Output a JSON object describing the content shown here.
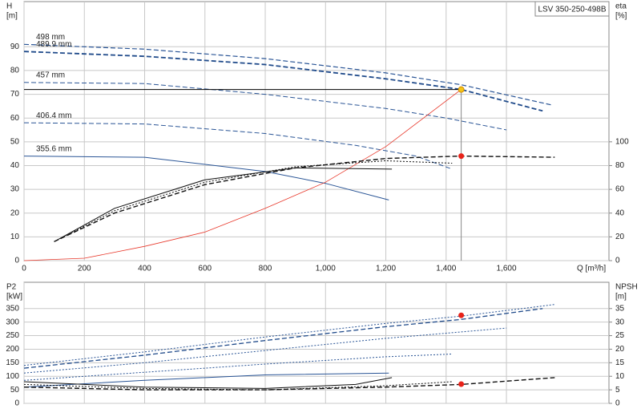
{
  "chart_data": [
    {
      "type": "line",
      "box_label": "LSV 350-250-498B",
      "y_label": "H",
      "y_unit": "[m]",
      "y2_label": "eta",
      "y2_unit": "[%]",
      "x_label": "Q [m³/h]",
      "xlim": [
        0,
        1940
      ],
      "xticks": [
        0,
        200,
        400,
        600,
        800,
        {
          "value": 1000,
          "label": "1,000"
        },
        {
          "value": 1200,
          "label": "1,200"
        },
        {
          "value": 1400,
          "label": "1,400"
        },
        {
          "value": 1600,
          "label": "1,600"
        }
      ],
      "x_tick_labels": true,
      "ylim": [
        0,
        109
      ],
      "yticks": [
        0,
        10,
        20,
        30,
        40,
        50,
        60,
        70,
        80,
        90
      ],
      "y2lim": [
        0,
        218
      ],
      "y2ticks": [
        0,
        20,
        40,
        60,
        80,
        100
      ],
      "series": [
        {
          "name": "498 mm",
          "color": "#2a5596",
          "style": "dashed",
          "width": 1.2,
          "x": [
            0,
            400,
            800,
            1200,
            1450,
            1750
          ],
          "values": [
            91,
            89,
            85,
            79,
            74,
            65.5
          ]
        },
        {
          "name": "489.9 mm",
          "color": "#1f4a8a",
          "style": "dashed",
          "width": 1.8,
          "x": [
            0,
            400,
            800,
            1200,
            1450,
            1720
          ],
          "values": [
            88,
            86,
            82.5,
            76.5,
            72,
            63
          ]
        },
        {
          "name": "457 mm",
          "color": "#2a5596",
          "style": "dashed",
          "width": 1,
          "x": [
            0,
            400,
            800,
            1200,
            1400,
            1600
          ],
          "values": [
            75,
            74.5,
            70,
            64,
            60,
            55
          ]
        },
        {
          "name": "406.4 mm",
          "color": "#2a5596",
          "style": "dashed",
          "width": 1,
          "x": [
            0,
            400,
            800,
            1100,
            1300,
            1420
          ],
          "values": [
            58,
            57.5,
            53.5,
            48.5,
            44,
            38.5
          ]
        },
        {
          "name": "355.6 mm",
          "color": "#2a5596",
          "style": "solid",
          "width": 1,
          "x": [
            0,
            400,
            800,
            1000,
            1210
          ],
          "values": [
            44,
            43.5,
            37.5,
            32.5,
            25.5
          ]
        },
        {
          "color": "#e8372a",
          "style": "solid",
          "width": 0.8,
          "x": [
            0,
            200,
            400,
            600,
            800,
            1000,
            1200,
            1450
          ],
          "values": [
            0,
            1,
            6,
            12,
            22,
            33,
            48,
            72
          ]
        },
        {
          "axis": "y2",
          "color": "#111111",
          "style": "dashed",
          "width": 1.4,
          "x": [
            100,
            300,
            600,
            900,
            1200,
            1450,
            1760
          ],
          "values": [
            16,
            40,
            64,
            78,
            86,
            88,
            87
          ]
        },
        {
          "axis": "y2",
          "color": "#111111",
          "style": "dotted",
          "width": 1,
          "x": [
            100,
            300,
            600,
            900,
            1200,
            1420
          ],
          "values": [
            16,
            42,
            66,
            79,
            84,
            82
          ]
        },
        {
          "axis": "y2",
          "color": "#111111",
          "style": "solid",
          "width": 1,
          "x": [
            100,
            300,
            600,
            900,
            1220
          ],
          "values": [
            16,
            44,
            68,
            78,
            77
          ]
        }
      ],
      "points": [
        {
          "x": 1450,
          "y": 72,
          "color": "#f5c518",
          "guide": true
        },
        {
          "x": 1450,
          "y": 88,
          "axis": "y2",
          "color": "#e8231a"
        }
      ]
    },
    {
      "type": "line",
      "y_label": "P2",
      "y_unit": "[kW]",
      "y2_label": "NPSH",
      "y2_unit": "[m]",
      "xlim": [
        0,
        1940
      ],
      "xticks": [
        0,
        200,
        400,
        600,
        800,
        1000,
        1200,
        1400,
        1600
      ],
      "x_tick_labels": false,
      "ylim": [
        0,
        447
      ],
      "yticks": [
        0,
        50,
        100,
        150,
        200,
        250,
        300,
        350
      ],
      "y2lim": [
        0,
        44.7
      ],
      "y2ticks": [
        0,
        5,
        10,
        15,
        20,
        25,
        30,
        35
      ],
      "series": [
        {
          "color": "#2a5596",
          "style": "dotted",
          "width": 1,
          "x": [
            0,
            400,
            800,
            1200,
            1450,
            1760
          ],
          "values": [
            140,
            190,
            245,
            295,
            322,
            365
          ]
        },
        {
          "color": "#1f4a8a",
          "style": "dashed",
          "width": 1.3,
          "x": [
            0,
            400,
            800,
            1200,
            1450,
            1720
          ],
          "values": [
            130,
            178,
            232,
            283,
            310,
            350
          ]
        },
        {
          "color": "#2a5596",
          "style": "dotted",
          "width": 1,
          "x": [
            0,
            400,
            800,
            1200,
            1600
          ],
          "values": [
            112,
            150,
            195,
            240,
            278
          ]
        },
        {
          "color": "#2a5596",
          "style": "dotted",
          "width": 1,
          "x": [
            0,
            400,
            800,
            1200,
            1420
          ],
          "values": [
            85,
            115,
            145,
            172,
            182
          ]
        },
        {
          "color": "#2a5596",
          "style": "solid",
          "width": 1,
          "x": [
            0,
            400,
            800,
            1210
          ],
          "values": [
            60,
            85,
            105,
            112
          ]
        },
        {
          "axis": "y2",
          "color": "#111111",
          "style": "dashed",
          "width": 1.4,
          "x": [
            0,
            400,
            800,
            1200,
            1450,
            1760
          ],
          "values": [
            6,
            5,
            5,
            6,
            7,
            9.5
          ]
        },
        {
          "axis": "y2",
          "color": "#111111",
          "style": "dotted",
          "width": 1,
          "x": [
            0,
            400,
            800,
            1200,
            1420
          ],
          "values": [
            7,
            5.5,
            5,
            6.5,
            8
          ]
        },
        {
          "axis": "y2",
          "color": "#111111",
          "style": "solid",
          "width": 1,
          "x": [
            0,
            400,
            800,
            1100,
            1220
          ],
          "values": [
            8,
            6,
            5.5,
            7,
            9.5
          ]
        }
      ],
      "points": [
        {
          "x": 1450,
          "y": 325,
          "color": "#e8231a"
        },
        {
          "x": 1450,
          "y": 7.1,
          "axis": "y2",
          "color": "#e8231a"
        }
      ]
    }
  ]
}
